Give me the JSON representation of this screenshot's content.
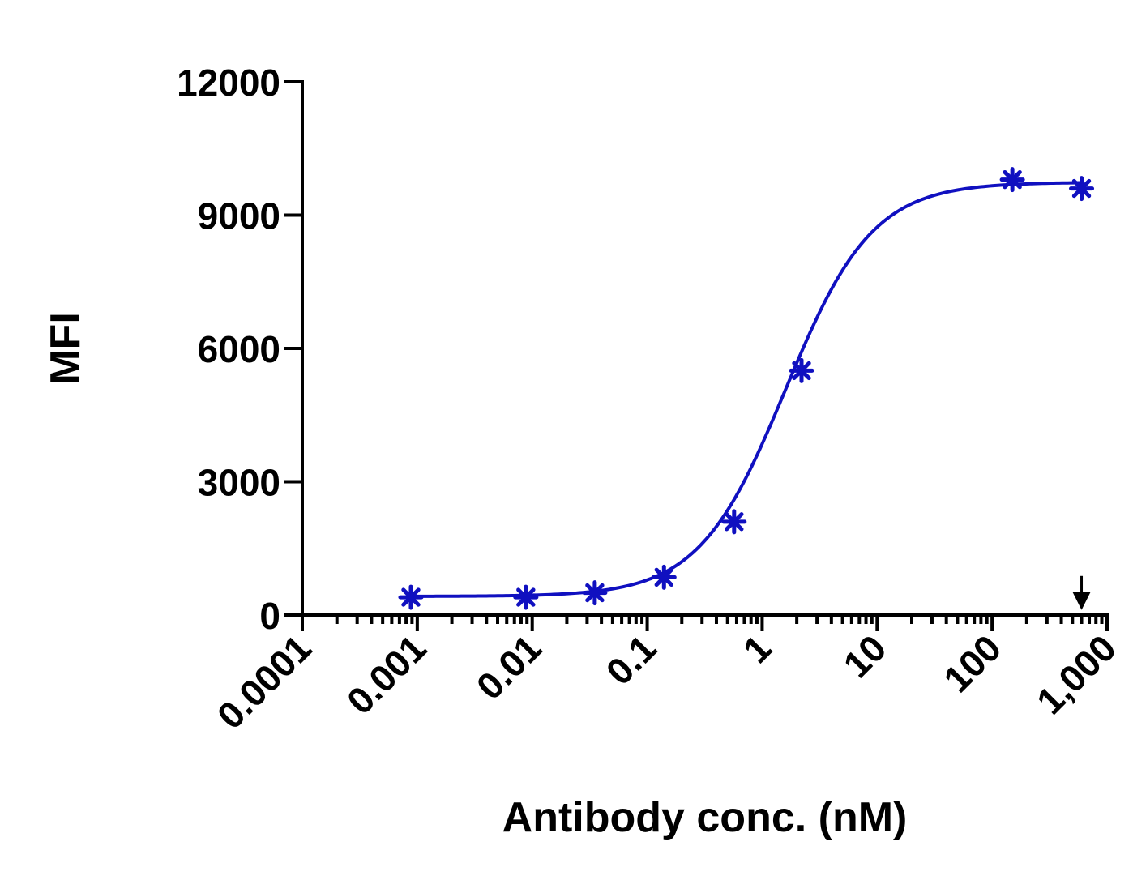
{
  "chart_data": {
    "type": "scatter",
    "title": "",
    "xlabel": "Antibody conc. (nM)",
    "ylabel": "MFI",
    "xscale": "log",
    "xlim": [
      0.0001,
      1000
    ],
    "ylim": [
      0,
      12000
    ],
    "x_ticks": [
      {
        "value": 0.0001,
        "label": "0.0001"
      },
      {
        "value": 0.001,
        "label": "0.001"
      },
      {
        "value": 0.01,
        "label": "0.01"
      },
      {
        "value": 0.1,
        "label": "0.1"
      },
      {
        "value": 1,
        "label": "1"
      },
      {
        "value": 10,
        "label": "10"
      },
      {
        "value": 100,
        "label": "100"
      },
      {
        "value": 1000,
        "label": "1,000"
      }
    ],
    "y_ticks": [
      {
        "value": 0,
        "label": "0"
      },
      {
        "value": 3000,
        "label": "3000"
      },
      {
        "value": 6000,
        "label": "6000"
      },
      {
        "value": 9000,
        "label": "9000"
      },
      {
        "value": 12000,
        "label": "12000"
      }
    ],
    "grid": false,
    "series": [
      {
        "color": "#1010c0",
        "marker": "asterisk",
        "fit": "sigmoidal",
        "x": [
          0.00088,
          0.0088,
          0.035,
          0.14,
          0.57,
          2.2,
          150,
          600
        ],
        "y": [
          400,
          400,
          500,
          850,
          2100,
          5500,
          9800,
          9600
        ]
      }
    ],
    "annotations": [
      {
        "type": "arrow",
        "direction": "down",
        "x": 600,
        "y": 150,
        "color": "#000000"
      }
    ]
  }
}
